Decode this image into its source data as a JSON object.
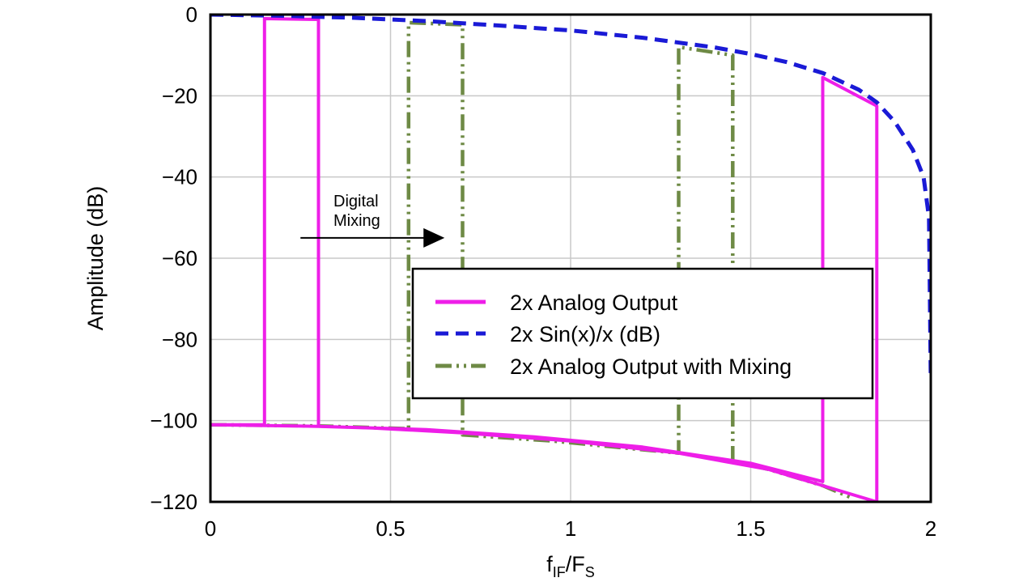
{
  "chart_data": {
    "type": "line",
    "xlabel_main": "f",
    "xlabel_sub1": "IF",
    "xlabel_mid": "/F",
    "xlabel_sub2": "S",
    "ylabel": "Amplitude (dB)",
    "xlim": [
      0,
      2
    ],
    "ylim": [
      -120,
      0
    ],
    "x_ticks": [
      0,
      0.5,
      1,
      1.5,
      2
    ],
    "x_tick_labels": [
      "0",
      "0.5",
      "1",
      "1.5",
      "2"
    ],
    "y_ticks": [
      0,
      -20,
      -40,
      -60,
      -80,
      -100,
      -120
    ],
    "y_tick_labels": [
      "0",
      "−20",
      "−40",
      "−60",
      "−80",
      "−100",
      "−120"
    ],
    "grid": true,
    "legend_position": "center-right",
    "annotation": {
      "line1": "Digital",
      "line2": "Mixing",
      "arrow_from_x": 0.25,
      "arrow_to_x": 0.65,
      "arrow_y": -55
    },
    "colors": {
      "analog": "#ee1ee8",
      "sinc": "#1a1ad6",
      "mixing": "#6e8a45"
    },
    "series": [
      {
        "name": "2x Analog Output",
        "style": "solid",
        "x": [
          0,
          0.3,
          0.6,
          0.9,
          1.2,
          1.5,
          1.7,
          1.7,
          1.85,
          1.85,
          1.85,
          1.55,
          1.3,
          1.0,
          0.7,
          0.45,
          0.3,
          0.3,
          0.15,
          0.15,
          0.0
        ],
        "y": [
          -101,
          -101.4,
          -102.2,
          -104,
          -106.5,
          -110.5,
          -115,
          -15.5,
          -22.5,
          -119,
          -120,
          -112,
          -108,
          -105,
          -103,
          -101.8,
          -101.4,
          -1.2,
          -1.0,
          -101,
          -101
        ]
      },
      {
        "name": "2x Sin(x)/x (dB)",
        "style": "dashed",
        "x": [
          0,
          0.2,
          0.4,
          0.6,
          0.8,
          1.0,
          1.2,
          1.4,
          1.5,
          1.6,
          1.7,
          1.8,
          1.85,
          1.9,
          1.95,
          1.98,
          1.995,
          2.0
        ],
        "y": [
          0,
          -0.3,
          -0.8,
          -1.6,
          -2.7,
          -3.9,
          -5.7,
          -8.1,
          -9.7,
          -11.7,
          -14.4,
          -18.5,
          -21.6,
          -26.4,
          -33.3,
          -40,
          -50,
          -90
        ]
      },
      {
        "name": "2x Analog Output with Mixing",
        "style": "dash-dot-dot",
        "x": [
          0,
          0.3,
          0.55,
          0.55,
          0.7,
          0.7,
          0.7,
          0.95,
          1.3,
          1.3,
          1.45,
          1.45,
          1.55,
          1.7,
          1.78
        ],
        "y": [
          -101,
          -101.3,
          -102,
          -2,
          -2.5,
          -102.5,
          -103.5,
          -105,
          -108,
          -8,
          -10,
          -110,
          -112,
          -116,
          -119
        ]
      }
    ]
  }
}
